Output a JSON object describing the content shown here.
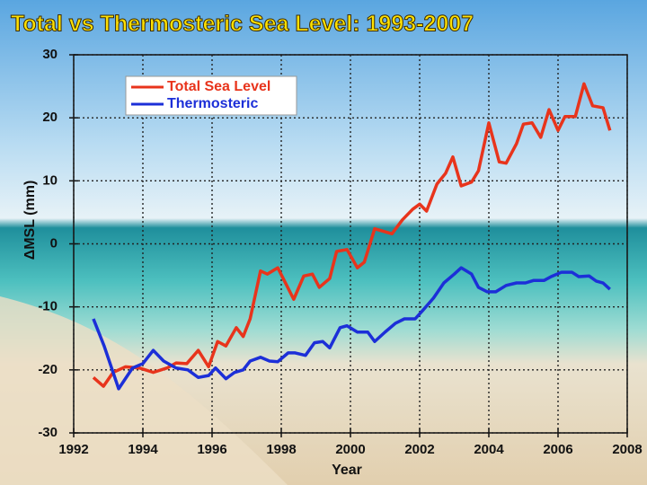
{
  "chart_data": {
    "type": "line",
    "title": "Total vs Thermosteric Sea Level: 1993-2007",
    "x_label": "Year",
    "y_label": "ΔMSL (mm)",
    "xlim": [
      1992,
      2008
    ],
    "xticks": [
      1992,
      1994,
      1996,
      1998,
      2000,
      2002,
      2004,
      2006,
      2008
    ],
    "ylim": [
      -30,
      30
    ],
    "yticks": [
      -30,
      -20,
      -10,
      0,
      10,
      20,
      30
    ],
    "grid": true,
    "legend": "upper left",
    "series": [
      {
        "name": "Total Sea Level",
        "color": "#e8341c",
        "x": [
          1992.57,
          1992.86,
          1993.14,
          1993.5,
          1993.9,
          1994.3,
          1994.7,
          1994.96,
          1995.27,
          1995.6,
          1995.9,
          1996.16,
          1996.4,
          1996.7,
          1996.9,
          1997.1,
          1997.4,
          1997.6,
          1997.9,
          1998.36,
          1998.65,
          1998.9,
          1999.1,
          1999.4,
          1999.6,
          1999.9,
          2000.2,
          2000.4,
          2000.7,
          2001.2,
          2001.5,
          2001.8,
          2002.0,
          2002.2,
          2002.5,
          2002.75,
          2002.96,
          2003.2,
          2003.5,
          2003.7,
          2004.0,
          2004.3,
          2004.5,
          2004.8,
          2005.0,
          2005.25,
          2005.5,
          2005.74,
          2006.0,
          2006.2,
          2006.5,
          2006.75,
          2007.0,
          2007.3,
          2007.5
        ],
        "values": [
          -21.2,
          -22.6,
          -20.4,
          -19.5,
          -19.7,
          -20.4,
          -19.7,
          -18.9,
          -19,
          -16.9,
          -19.5,
          -15.5,
          -16.2,
          -13.3,
          -14.7,
          -11.9,
          -4.3,
          -4.8,
          -3.8,
          -8.8,
          -5.1,
          -4.8,
          -6.9,
          -5.5,
          -1.2,
          -0.9,
          -3.8,
          -2.9,
          2.4,
          1.6,
          3.8,
          5.5,
          6.3,
          5.2,
          9.5,
          11.2,
          13.8,
          9.2,
          9.8,
          11.6,
          19.2,
          13.0,
          12.8,
          15.9,
          19.0,
          19.2,
          16.9,
          21.3,
          18.0,
          20.2,
          20.2,
          25.4,
          21.9,
          21.6,
          18.0
        ]
      },
      {
        "name": "Thermosteric",
        "color": "#1c2fd8",
        "x": [
          1992.57,
          1992.88,
          1993.3,
          1993.7,
          1994.0,
          1994.3,
          1994.6,
          1994.96,
          1995.3,
          1995.6,
          1995.9,
          1996.1,
          1996.4,
          1996.65,
          1996.9,
          1997.1,
          1997.4,
          1997.66,
          1997.9,
          1998.2,
          1998.4,
          1998.7,
          1998.96,
          1999.2,
          1999.4,
          1999.7,
          1999.9,
          2000.2,
          2000.5,
          2000.7,
          2001.0,
          2001.3,
          2001.56,
          2001.87,
          2002.1,
          2002.4,
          2002.7,
          2003.0,
          2003.2,
          2003.5,
          2003.7,
          2003.95,
          2004.2,
          2004.5,
          2004.8,
          2005.06,
          2005.3,
          2005.6,
          2005.8,
          2006.1,
          2006.4,
          2006.6,
          2006.9,
          2007.1,
          2007.3,
          2007.5
        ],
        "values": [
          -11.9,
          -16.2,
          -23.0,
          -19.7,
          -19.0,
          -16.9,
          -18.6,
          -19.7,
          -20.0,
          -21.2,
          -20.9,
          -19.7,
          -21.4,
          -20.4,
          -20.0,
          -18.6,
          -18.0,
          -18.6,
          -18.7,
          -17.3,
          -17.3,
          -17.7,
          -15.7,
          -15.5,
          -16.5,
          -13.3,
          -13.0,
          -14.0,
          -14.0,
          -15.5,
          -14.0,
          -12.6,
          -11.9,
          -11.9,
          -10.5,
          -8.6,
          -6.2,
          -4.8,
          -3.8,
          -4.8,
          -6.9,
          -7.6,
          -7.6,
          -6.6,
          -6.2,
          -6.2,
          -5.8,
          -5.8,
          -5.2,
          -4.5,
          -4.5,
          -5.2,
          -5.1,
          -5.9,
          -6.2,
          -7.2
        ]
      }
    ]
  }
}
